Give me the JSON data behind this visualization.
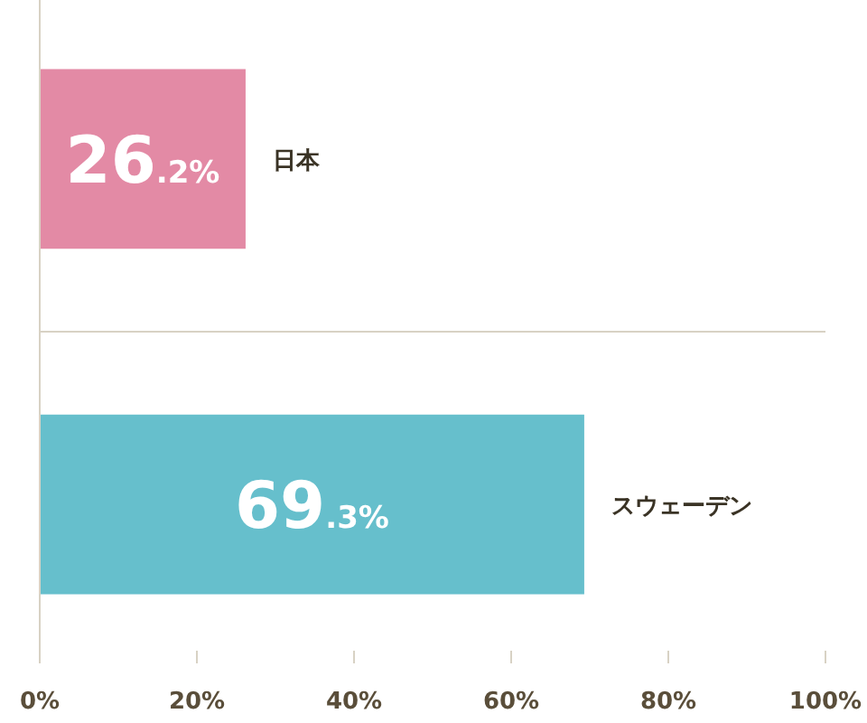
{
  "chart_data": {
    "type": "bar",
    "orientation": "horizontal",
    "categories": [
      "日本",
      "スウェーデン"
    ],
    "values": [
      26.2,
      69.3
    ],
    "colors": [
      "#e38aa5",
      "#66bfcc"
    ],
    "value_labels": [
      "26.2%",
      "69.3%"
    ],
    "xlim": [
      0,
      100
    ],
    "xticks": [
      {
        "value": 0,
        "label": "0%"
      },
      {
        "value": 20,
        "label": "20%"
      },
      {
        "value": 40,
        "label": "40%"
      },
      {
        "value": 60,
        "label": "60%"
      },
      {
        "value": 80,
        "label": "80%"
      },
      {
        "value": 100,
        "label": "100%"
      }
    ],
    "grid": false
  }
}
